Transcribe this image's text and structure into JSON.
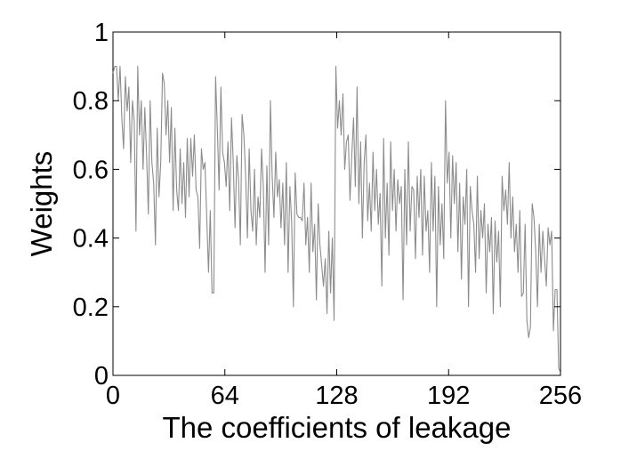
{
  "chart_data": {
    "type": "line",
    "title": "",
    "xlabel": "The coefficients of leakage",
    "ylabel": "Weights",
    "xlim": [
      0,
      256
    ],
    "ylim": [
      0,
      1
    ],
    "xticks": [
      0,
      64,
      128,
      192,
      256
    ],
    "xtick_labels": [
      "0",
      "64",
      "128",
      "192",
      "256"
    ],
    "yticks": [
      0,
      0.2,
      0.4,
      0.6,
      0.8,
      1
    ],
    "ytick_labels": [
      "0",
      "0.2",
      "0.4",
      "0.6",
      "0.8",
      "1"
    ],
    "grid": false,
    "legend": "none",
    "line_color": "#8c8c8c",
    "series": [
      {
        "values": [
          0.88,
          0.9,
          0.9,
          0.8,
          0.9,
          0.75,
          0.66,
          0.87,
          0.77,
          0.84,
          0.62,
          0.8,
          0.74,
          0.42,
          0.9,
          0.7,
          0.8,
          0.6,
          0.78,
          0.64,
          0.47,
          0.8,
          0.62,
          0.56,
          0.38,
          0.72,
          0.52,
          0.62,
          0.88,
          0.85,
          0.7,
          0.8,
          0.62,
          0.78,
          0.48,
          0.72,
          0.54,
          0.48,
          0.66,
          0.5,
          0.62,
          0.46,
          0.69,
          0.52,
          0.69,
          0.58,
          0.7,
          0.54,
          0.52,
          0.37,
          0.66,
          0.6,
          0.62,
          0.46,
          0.3,
          0.48,
          0.24,
          0.24,
          0.87,
          0.72,
          0.54,
          0.84,
          0.65,
          0.62,
          0.55,
          0.68,
          0.48,
          0.75,
          0.62,
          0.43,
          0.64,
          0.57,
          0.38,
          0.76,
          0.7,
          0.58,
          0.4,
          0.66,
          0.48,
          0.42,
          0.6,
          0.38,
          0.52,
          0.46,
          0.66,
          0.55,
          0.3,
          0.61,
          0.38,
          0.8,
          0.58,
          0.46,
          0.65,
          0.52,
          0.57,
          0.43,
          0.56,
          0.38,
          0.62,
          0.3,
          0.55,
          0.45,
          0.2,
          0.59,
          0.47,
          0.46,
          0.46,
          0.45,
          0.56,
          0.38,
          0.46,
          0.3,
          0.56,
          0.36,
          0.44,
          0.22,
          0.5,
          0.38,
          0.32,
          0.26,
          0.34,
          0.18,
          0.42,
          0.24,
          0.4,
          0.16,
          0.9,
          0.72,
          0.8,
          0.7,
          0.82,
          0.6,
          0.68,
          0.7,
          0.51,
          0.64,
          0.75,
          0.55,
          0.84,
          0.5,
          0.68,
          0.4,
          0.62,
          0.7,
          0.45,
          0.56,
          0.42,
          0.65,
          0.48,
          0.6,
          0.44,
          0.53,
          0.26,
          0.69,
          0.4,
          0.56,
          0.35,
          0.68,
          0.48,
          0.6,
          0.42,
          0.57,
          0.5,
          0.55,
          0.22,
          0.6,
          0.38,
          0.68,
          0.42,
          0.55,
          0.54,
          0.34,
          0.58,
          0.46,
          0.6,
          0.35,
          0.58,
          0.42,
          0.48,
          0.3,
          0.62,
          0.42,
          0.58,
          0.2,
          0.55,
          0.38,
          0.5,
          0.34,
          0.8,
          0.56,
          0.65,
          0.4,
          0.64,
          0.5,
          0.62,
          0.36,
          0.56,
          0.28,
          0.52,
          0.44,
          0.6,
          0.2,
          0.55,
          0.48,
          0.44,
          0.3,
          0.58,
          0.34,
          0.48,
          0.4,
          0.5,
          0.24,
          0.44,
          0.36,
          0.46,
          0.18,
          0.45,
          0.33,
          0.42,
          0.2,
          0.58,
          0.48,
          0.54,
          0.44,
          0.62,
          0.4,
          0.52,
          0.36,
          0.44,
          0.3,
          0.48,
          0.23,
          0.24,
          0.44,
          0.16,
          0.11,
          0.14,
          0.5,
          0.46,
          0.36,
          0.2,
          0.44,
          0.3,
          0.42,
          0.34,
          0.26,
          0.43,
          0.38,
          0.42,
          0.13,
          0.25,
          0.25,
          0.02,
          0.01
        ]
      }
    ]
  }
}
